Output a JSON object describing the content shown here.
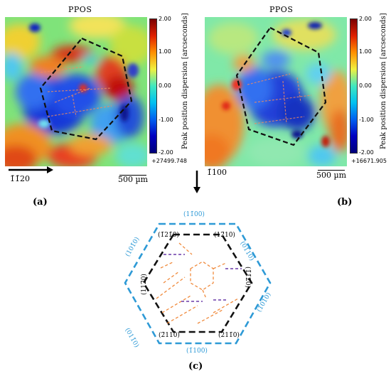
{
  "panel_a": {
    "title": "PPOS",
    "colorbar_ticks": [
      "2.00",
      "1.00",
      "0.00",
      "-1.00",
      "-2.00"
    ],
    "colorbar_label": "Peak position dispersion [arcseconds]",
    "offset": "+27499.748",
    "direction": "1̄1̄20",
    "scale": "500 µm",
    "label": "(a)"
  },
  "panel_b": {
    "title": "PPOS",
    "colorbar_ticks": [
      "2.00",
      "1.00",
      "0.00",
      "-1.00",
      "-2.00"
    ],
    "colorbar_label": "Peak position dispersion [arcseconds]",
    "offset": "+16671.905",
    "direction": "1̄100",
    "scale": "500 µm",
    "label": "(b)"
  },
  "panel_c": {
    "label": "(c)",
    "outer_planes": [
      "(11̄00)",
      "(01̄10)",
      "(1̄010)",
      "(1̄100)",
      "(011̄0)",
      "(101̄0)"
    ],
    "inner_planes": [
      "(1̄21̄0)",
      "(112̄0)",
      "(211̄0)",
      "(12̄10)",
      "(1̄1̄20)",
      "(2̄110)"
    ]
  },
  "colors": {
    "outer_hex": "#2e9ad6",
    "inner_hex": "#000000",
    "dislocation_orange": "#f08a3c",
    "dislocation_purple": "#6a3aa8"
  }
}
